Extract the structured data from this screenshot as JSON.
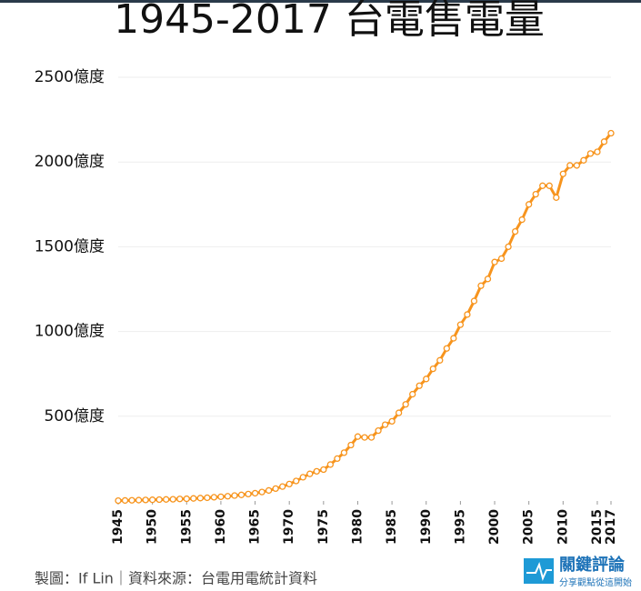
{
  "chart_data": {
    "type": "line",
    "title": "1945-2017 台電售電量",
    "x": [
      1945,
      1946,
      1947,
      1948,
      1949,
      1950,
      1951,
      1952,
      1953,
      1954,
      1955,
      1956,
      1957,
      1958,
      1959,
      1960,
      1961,
      1962,
      1963,
      1964,
      1965,
      1966,
      1967,
      1968,
      1969,
      1970,
      1971,
      1972,
      1973,
      1974,
      1975,
      1976,
      1977,
      1978,
      1979,
      1980,
      1981,
      1982,
      1983,
      1984,
      1985,
      1986,
      1987,
      1988,
      1989,
      1990,
      1991,
      1992,
      1993,
      1994,
      1995,
      1996,
      1997,
      1998,
      1999,
      2000,
      2001,
      2002,
      2003,
      2004,
      2005,
      2006,
      2007,
      2008,
      2009,
      2010,
      2011,
      2012,
      2013,
      2014,
      2015,
      2016,
      2017
    ],
    "series": [
      {
        "color": "#f7941d",
        "values": [
          2,
          3,
          4,
          5,
          6,
          7,
          8,
          9,
          10,
          12,
          13,
          15,
          17,
          19,
          22,
          25,
          28,
          32,
          36,
          41,
          46,
          53,
          62,
          73,
          85,
          100,
          118,
          140,
          160,
          175,
          185,
          215,
          250,
          285,
          330,
          380,
          375,
          375,
          415,
          450,
          470,
          520,
          570,
          630,
          680,
          720,
          780,
          830,
          900,
          960,
          1040,
          1100,
          1180,
          1270,
          1310,
          1410,
          1430,
          1500,
          1590,
          1660,
          1750,
          1810,
          1860,
          1860,
          1790,
          1930,
          1980,
          1980,
          2010,
          2050,
          2060,
          2120,
          2170
        ]
      }
    ],
    "xlim": [
      1945,
      2017
    ],
    "xticks": [
      1945,
      1950,
      1955,
      1960,
      1965,
      1970,
      1975,
      1980,
      1985,
      1990,
      1995,
      2000,
      2005,
      2010,
      2015,
      2017
    ],
    "ylim": [
      0,
      2500
    ],
    "yticks": [
      {
        "value": 500,
        "label": "500億度"
      },
      {
        "value": 1000,
        "label": "1000億度"
      },
      {
        "value": 1500,
        "label": "1500億度"
      },
      {
        "value": 2000,
        "label": "2000億度"
      },
      {
        "value": 2500,
        "label": "2500億度"
      }
    ],
    "grid": true
  },
  "footer": {
    "credit": "製圖：If Lin｜資料來源：台電用電統計資料",
    "logo": "關鍵評論",
    "tagline": "分享觀點從這開始"
  }
}
